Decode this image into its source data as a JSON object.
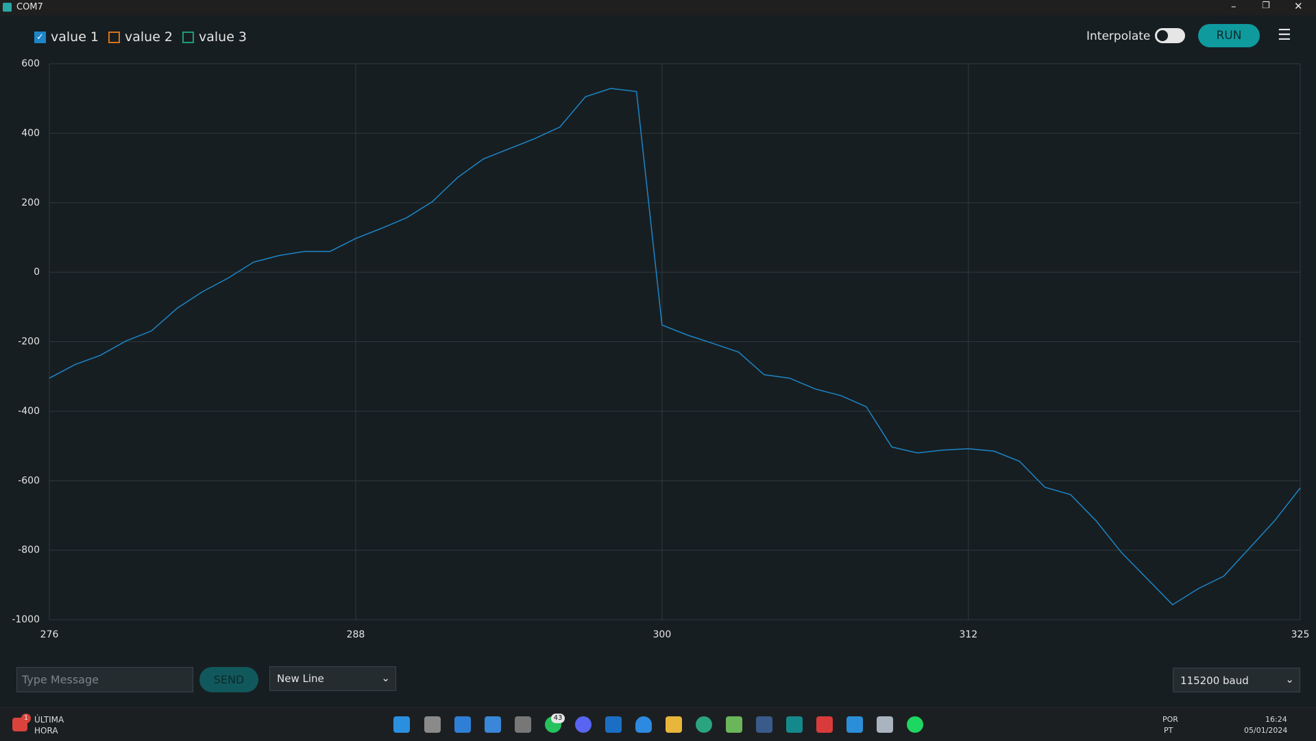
{
  "window": {
    "title": "COM7"
  },
  "toolbar": {
    "inactive_series": [
      {
        "name": "value 2",
        "color": "#d9731c",
        "checked": false
      },
      {
        "name": "value 3",
        "color": "#1f9e74",
        "checked": false
      }
    ],
    "interpolate_label": "Interpolate",
    "interpolate_on": false,
    "run_button": "RUN"
  },
  "chart_data": {
    "type": "line",
    "x": [
      276,
      277,
      278,
      279,
      280,
      281,
      282,
      283,
      284,
      285,
      286,
      287,
      288,
      289,
      290,
      291,
      292,
      293,
      294,
      295,
      296,
      297,
      298,
      299,
      300,
      301,
      302,
      303,
      304,
      305,
      306,
      307,
      308,
      309,
      310,
      311,
      312,
      313,
      314,
      315,
      316,
      317,
      318,
      319,
      320,
      321,
      322,
      323,
      324,
      325
    ],
    "series": [
      {
        "name": "value 1",
        "color": "#1c86c9",
        "checked": true,
        "values": [
          -305,
          -266,
          -239,
          -198,
          -169,
          -104,
          -56,
          -17,
          29,
          48,
          60,
          60,
          97,
          126,
          157,
          203,
          273,
          326,
          355,
          384,
          418,
          505,
          529,
          520,
          -152,
          -181,
          -205,
          -230,
          -295,
          -305,
          -336,
          -355,
          -387,
          -503,
          -520,
          -512,
          -508,
          -515,
          -544,
          -619,
          -640,
          -715,
          -807,
          -882,
          -957,
          -911,
          -875,
          -795,
          -715,
          -621
        ]
      }
    ],
    "xlim": [
      276,
      325
    ],
    "xticks": [
      276,
      288,
      300,
      312,
      325
    ],
    "ylim": [
      -1000,
      600
    ],
    "yticks": [
      -1000,
      -800,
      -600,
      -400,
      -200,
      0,
      200,
      400,
      600
    ],
    "grid": true
  },
  "footer": {
    "message_placeholder": "Type Message",
    "send_button": "SEND",
    "line_ending": "New Line",
    "baud": "115200 baud"
  },
  "taskbar": {
    "news_title": "ÚLTIMA",
    "news_subtitle": "HORA",
    "news_badge": "1",
    "whatsapp_badge": "43",
    "language": "POR",
    "region": "PT",
    "time": "16:24",
    "date": "05/01/2024"
  }
}
